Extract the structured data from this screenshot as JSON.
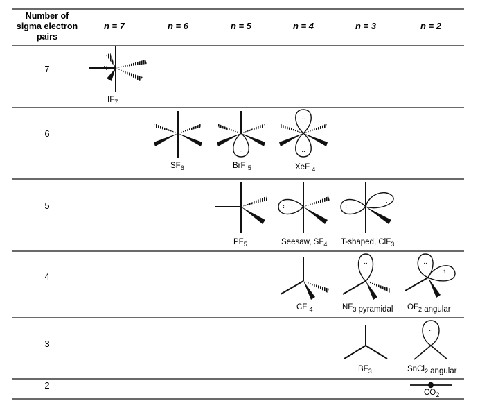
{
  "header": {
    "row_label_header": [
      "Number of",
      "sigma electron",
      "pairs"
    ],
    "columns": [
      "n = 7",
      "n = 6",
      "n = 5",
      "n = 4",
      "n = 3",
      "n = 2"
    ]
  },
  "rows": [
    {
      "label": "7",
      "captions": [
        {
          "text": "IF",
          "sub": "7"
        }
      ]
    },
    {
      "label": "6",
      "captions": [
        {
          "text": "SF",
          "sub": "6"
        },
        {
          "text": "BrF ",
          "sub": "5"
        },
        {
          "text": "XeF ",
          "sub": "4"
        }
      ]
    },
    {
      "label": "5",
      "captions": [
        {
          "text": "PF",
          "sub": "5"
        },
        {
          "text": "Seesaw, SF",
          "sub": "4"
        },
        {
          "text": "T-shaped, ClF",
          "sub": "3"
        }
      ]
    },
    {
      "label": "4",
      "captions": [
        {
          "text": "CF ",
          "sub": "4"
        },
        {
          "text": "NF",
          "sub": "3",
          "after": " pyramidal"
        },
        {
          "text": "OF",
          "sub": "2",
          "after": " angular"
        }
      ]
    },
    {
      "label": "3",
      "captions": [
        {
          "text": "BF",
          "sub": "3"
        },
        {
          "text": "SnCl",
          "sub": "2",
          "after": " angular"
        }
      ]
    },
    {
      "label": "2",
      "captions": [
        {
          "text": "CO",
          "sub": "2"
        }
      ]
    }
  ],
  "lone_pair_mark": ".."
}
